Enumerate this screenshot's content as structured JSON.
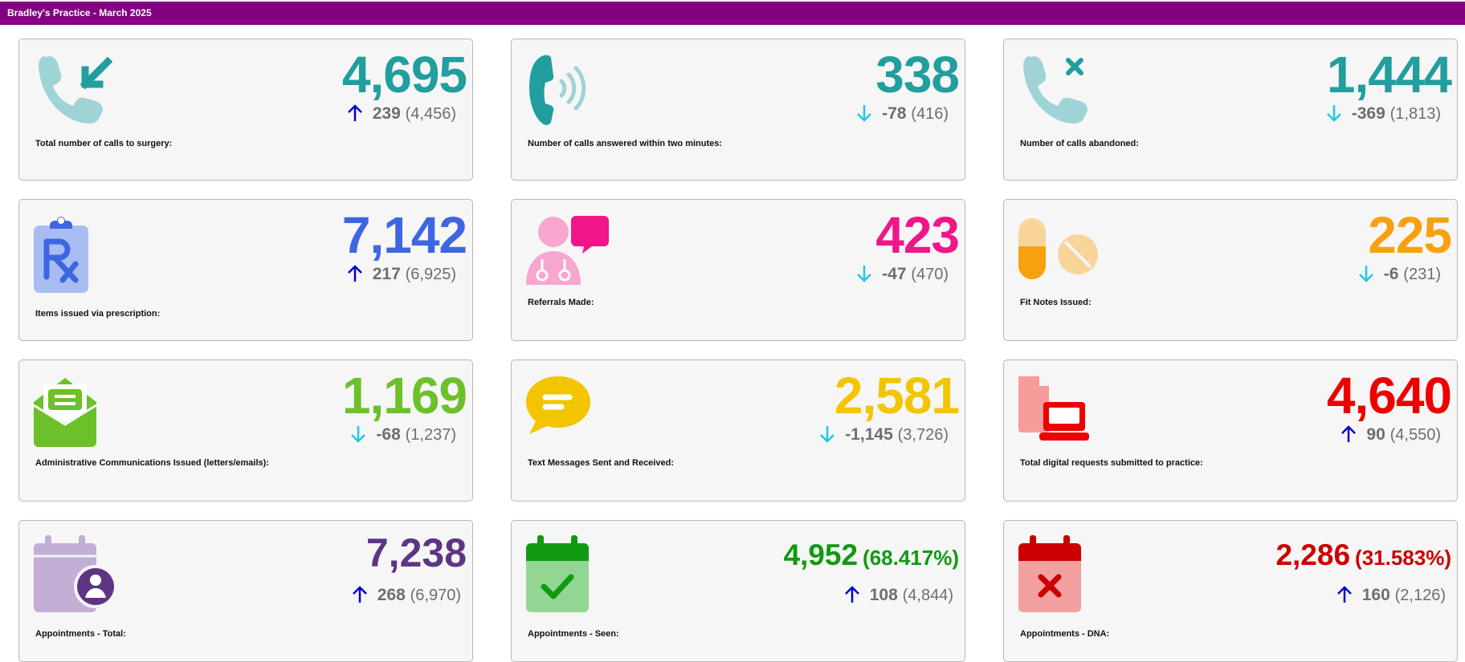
{
  "header": {
    "title": "Bradley's Practice - March 2025"
  },
  "colors": {
    "header_bg": "#830083",
    "up_arrow": "#0000cc",
    "down_arrow": "#1ec8e6"
  },
  "cards": [
    {
      "icon": "phone-incoming-icon",
      "value": "4,695",
      "value_color": "#229e9e",
      "trend": "up",
      "delta": "239",
      "previous": "(4,456)",
      "label": "Total number of calls to surgery:"
    },
    {
      "icon": "phone-answered-icon",
      "value": "338",
      "value_color": "#229e9e",
      "trend": "down",
      "delta": "-78",
      "previous": "(416)",
      "label": "Number of calls answered within two minutes:"
    },
    {
      "icon": "phone-abandoned-icon",
      "value": "1,444",
      "value_color": "#229e9e",
      "trend": "down",
      "delta": "-369",
      "previous": "(1,813)",
      "label": "Number of calls abandoned:"
    },
    {
      "icon": "prescription-clipboard-icon",
      "value": "7,142",
      "value_color": "#3d66e0",
      "trend": "up",
      "delta": "217",
      "previous": "(6,925)",
      "label": "Items issued via prescription:"
    },
    {
      "icon": "doctor-referral-icon",
      "value": "423",
      "value_color": "#f0168a",
      "trend": "down",
      "delta": "-47",
      "previous": "(470)",
      "label": "Referrals Made:"
    },
    {
      "icon": "pills-icon",
      "value": "225",
      "value_color": "#f8a10e",
      "trend": "down",
      "delta": "-6",
      "previous": "(231)",
      "label": "Fit Notes Issued:"
    },
    {
      "icon": "envelope-open-icon",
      "value": "1,169",
      "value_color": "#6cc02a",
      "trend": "down",
      "delta": "-68",
      "previous": "(1,237)",
      "label": "Administrative Communications Issued (letters/emails):"
    },
    {
      "icon": "speech-bubble-icon",
      "value": "2,581",
      "value_color": "#f2c500",
      "trend": "down",
      "delta": "-1,145",
      "previous": "(3,726)",
      "label": "Text Messages Sent and Received:"
    },
    {
      "icon": "digital-request-laptop-icon",
      "value": "4,640",
      "value_color": "#ee0000",
      "trend": "up",
      "delta": "90",
      "previous": "(4,550)",
      "label": "Total digital requests submitted to practice:"
    },
    {
      "icon": "calendar-person-icon",
      "value": "7,238",
      "value_color": "#5e3585",
      "trend": "up",
      "delta": "268",
      "previous": "(6,970)",
      "label": "Appointments - Total:"
    },
    {
      "icon": "calendar-check-icon",
      "value": "4,952",
      "percent": "(68.417%)",
      "value_color": "#119a11",
      "trend": "up",
      "delta": "108",
      "previous": "(4,844)",
      "label": "Appointments - Seen:"
    },
    {
      "icon": "calendar-cross-icon",
      "value": "2,286",
      "percent": "(31.583%)",
      "value_color": "#cc0000",
      "trend": "up",
      "delta": "160",
      "previous": "(2,126)",
      "label": "Appointments - DNA:"
    }
  ]
}
